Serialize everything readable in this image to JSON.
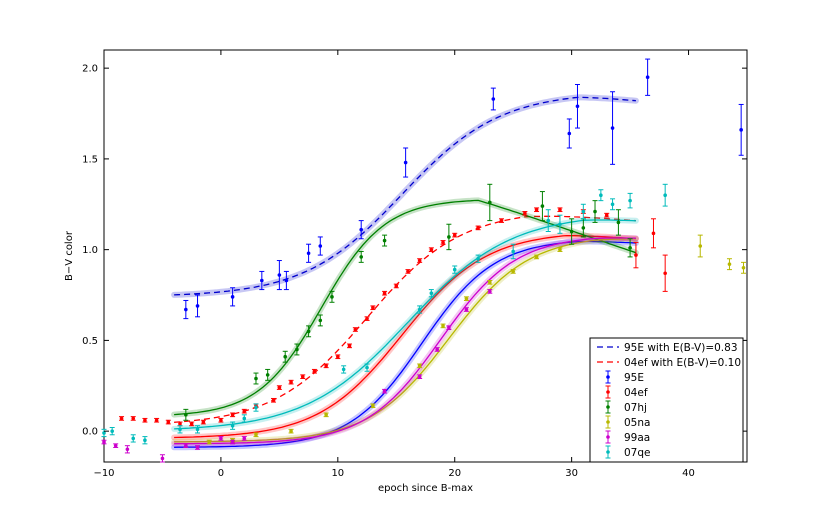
{
  "chart_data": {
    "type": "scatter",
    "title": "",
    "xlabel": "epoch since B-max",
    "ylabel": "B−V color",
    "xlim": [
      -10,
      45
    ],
    "ylim": [
      -0.17,
      2.1
    ],
    "xticks": [
      -10,
      0,
      10,
      20,
      30,
      40
    ],
    "yticks": [
      0.0,
      0.5,
      1.0,
      1.5,
      2.0
    ],
    "ytick_labels": [
      "0.0",
      "0.5",
      "1.0",
      "1.5",
      "2.0"
    ],
    "grid": false,
    "legend_position": "lower-right",
    "fits": [
      {
        "name": "95E with E(B-V)=0.83",
        "color": "#0000cc",
        "dashed": true,
        "band": true,
        "y_min": 0.74,
        "y_max": 1.87,
        "x_mid": 15.5,
        "width": 4.2,
        "x_start": -4,
        "x_end": 35.5,
        "dip_after": 30.5,
        "dip_rate": 0.008
      },
      {
        "name": "04ef with E(B-V)=0.10",
        "color": "#ff0000",
        "dashed": true,
        "band": false,
        "y_min": 0.03,
        "y_max": 1.22,
        "x_mid": 12.5,
        "width": 4.0,
        "x_start": -4,
        "x_end": 35.5,
        "dip_after": 26,
        "dip_rate": 0.006
      },
      {
        "name": "95E",
        "color": "#0000ff",
        "dashed": false,
        "band": true,
        "y_min": -0.09,
        "y_max": 1.06,
        "x_mid": 17.2,
        "width": 3.1,
        "x_start": -4,
        "x_end": 35.5,
        "dip_after": 30.5,
        "dip_rate": 0.004
      },
      {
        "name": "04ef",
        "color": "#ff0000",
        "dashed": false,
        "band": true,
        "y_min": -0.04,
        "y_max": 1.1,
        "x_mid": 15.5,
        "width": 3.6,
        "x_start": -4,
        "x_end": 35.5,
        "dip_after": 29.5,
        "dip_rate": 0.006
      },
      {
        "name": "07hj",
        "color": "#008000",
        "dashed": false,
        "band": true,
        "y_min": 0.08,
        "y_max": 1.28,
        "x_mid": 8.6,
        "width": 2.7,
        "x_start": -4,
        "x_end": 35.5,
        "dip_after": 22,
        "dip_rate": 0.022
      },
      {
        "name": "05na",
        "color": "#b8b800",
        "dashed": false,
        "band": true,
        "y_min": -0.06,
        "y_max": 1.08,
        "x_mid": 19.5,
        "width": 3.4,
        "x_start": -4,
        "x_end": 35.5,
        "dip_after": 32,
        "dip_rate": 0.003
      },
      {
        "name": "99aa",
        "color": "#cc00cc",
        "dashed": false,
        "band": true,
        "y_min": -0.07,
        "y_max": 1.08,
        "x_mid": 18.8,
        "width": 3.2,
        "x_start": -4,
        "x_end": 35.5,
        "dip_after": 32,
        "dip_rate": 0.003
      },
      {
        "name": "07qe",
        "color": "#00bbbb",
        "dashed": false,
        "band": true,
        "y_min": 0.0,
        "y_max": 1.2,
        "x_mid": 16.0,
        "width": 4.4,
        "x_start": -4,
        "x_end": 35.5,
        "dip_after": 31,
        "dip_rate": 0.006
      }
    ],
    "series": [
      {
        "name": "95E",
        "color": "#0000ff",
        "points": [
          [
            -3,
            0.67,
            0.05
          ],
          [
            -2,
            0.69,
            0.06
          ],
          [
            1,
            0.74,
            0.05
          ],
          [
            3.5,
            0.83,
            0.05
          ],
          [
            5,
            0.86,
            0.08
          ],
          [
            5.6,
            0.83,
            0.05
          ],
          [
            7.5,
            0.98,
            0.05
          ],
          [
            8.5,
            1.02,
            0.05
          ],
          [
            12,
            1.11,
            0.05
          ],
          [
            15.8,
            1.48,
            0.08
          ],
          [
            23.3,
            1.83,
            0.06
          ],
          [
            29.8,
            1.64,
            0.08
          ],
          [
            30.5,
            1.79,
            0.12
          ],
          [
            33.5,
            1.67,
            0.2
          ],
          [
            36.5,
            1.95,
            0.1
          ],
          [
            44.5,
            1.66,
            0.14
          ]
        ]
      },
      {
        "name": "04ef",
        "color": "#ff0000",
        "points": [
          [
            -8.5,
            0.07,
            0.01
          ],
          [
            -7.5,
            0.07,
            0.01
          ],
          [
            -6.5,
            0.06,
            0.01
          ],
          [
            -5.5,
            0.06,
            0.01
          ],
          [
            -4.5,
            0.05,
            0.01
          ],
          [
            -3.5,
            0.04,
            0.01
          ],
          [
            -2.5,
            0.04,
            0.01
          ],
          [
            -1.5,
            0.05,
            0.01
          ],
          [
            0,
            0.06,
            0.01
          ],
          [
            1,
            0.09,
            0.01
          ],
          [
            2,
            0.11,
            0.01
          ],
          [
            3,
            0.14,
            0.01
          ],
          [
            4.5,
            0.17,
            0.01
          ],
          [
            5,
            0.24,
            0.01
          ],
          [
            6,
            0.27,
            0.01
          ],
          [
            7,
            0.3,
            0.01
          ],
          [
            8,
            0.33,
            0.01
          ],
          [
            9,
            0.36,
            0.01
          ],
          [
            10,
            0.41,
            0.01
          ],
          [
            11,
            0.47,
            0.01
          ],
          [
            11.5,
            0.56,
            0.01
          ],
          [
            12.5,
            0.62,
            0.01
          ],
          [
            13,
            0.68,
            0.01
          ],
          [
            14,
            0.76,
            0.01
          ],
          [
            15,
            0.8,
            0.01
          ],
          [
            16,
            0.88,
            0.01
          ],
          [
            17,
            0.94,
            0.01
          ],
          [
            18,
            1.0,
            0.01
          ],
          [
            19,
            1.04,
            0.01
          ],
          [
            20,
            1.08,
            0.01
          ],
          [
            22,
            1.12,
            0.01
          ],
          [
            24,
            1.16,
            0.01
          ],
          [
            26,
            1.2,
            0.01
          ],
          [
            27,
            1.22,
            0.01
          ],
          [
            29,
            1.22,
            0.01
          ],
          [
            31,
            1.21,
            0.01
          ],
          [
            33,
            1.19,
            0.01
          ],
          [
            35.5,
            0.97,
            0.07
          ],
          [
            37,
            1.09,
            0.08
          ],
          [
            38,
            0.87,
            0.1
          ]
        ]
      },
      {
        "name": "07hj",
        "color": "#008000",
        "points": [
          [
            -3,
            0.09,
            0.03
          ],
          [
            3,
            0.29,
            0.03
          ],
          [
            4,
            0.31,
            0.03
          ],
          [
            5.5,
            0.41,
            0.03
          ],
          [
            6.5,
            0.45,
            0.03
          ],
          [
            7.5,
            0.55,
            0.03
          ],
          [
            8.5,
            0.61,
            0.03
          ],
          [
            9.5,
            0.74,
            0.03
          ],
          [
            12,
            0.96,
            0.03
          ],
          [
            14,
            1.05,
            0.03
          ],
          [
            19.5,
            1.07,
            0.07
          ],
          [
            23,
            1.26,
            0.1
          ],
          [
            27.5,
            1.24,
            0.08
          ],
          [
            30,
            1.1,
            0.07
          ],
          [
            31,
            1.12,
            0.05
          ],
          [
            32,
            1.21,
            0.06
          ],
          [
            34,
            1.15,
            0.07
          ],
          [
            35,
            1.01,
            0.05
          ]
        ]
      },
      {
        "name": "05na",
        "color": "#b8b800",
        "points": [
          [
            -1,
            -0.06,
            0.01
          ],
          [
            1,
            -0.05,
            0.01
          ],
          [
            3,
            -0.02,
            0.01
          ],
          [
            6,
            0.0,
            0.01
          ],
          [
            9,
            0.09,
            0.01
          ],
          [
            13,
            0.14,
            0.01
          ],
          [
            17,
            0.36,
            0.01
          ],
          [
            19,
            0.58,
            0.01
          ],
          [
            21,
            0.73,
            0.01
          ],
          [
            23,
            0.82,
            0.01
          ],
          [
            25,
            0.88,
            0.01
          ],
          [
            27,
            0.96,
            0.01
          ],
          [
            29,
            1.0,
            0.01
          ],
          [
            41,
            1.02,
            0.06
          ],
          [
            43.5,
            0.92,
            0.03
          ],
          [
            44.7,
            0.9,
            0.03
          ]
        ]
      },
      {
        "name": "99aa",
        "color": "#cc00cc",
        "points": [
          [
            -10,
            -0.06,
            0.01
          ],
          [
            -9,
            -0.08,
            0.01
          ],
          [
            -8,
            -0.1,
            0.02
          ],
          [
            -5,
            -0.15,
            0.02
          ],
          [
            -3,
            -0.08,
            0.01
          ],
          [
            -2,
            -0.09,
            0.01
          ],
          [
            0,
            -0.04,
            0.01
          ],
          [
            1,
            -0.06,
            0.01
          ],
          [
            2,
            -0.04,
            0.01
          ],
          [
            14,
            0.22,
            0.01
          ],
          [
            17,
            0.3,
            0.01
          ],
          [
            18.5,
            0.45,
            0.01
          ],
          [
            19.5,
            0.57,
            0.01
          ],
          [
            21,
            0.67,
            0.01
          ],
          [
            23,
            0.77,
            0.01
          ]
        ]
      },
      {
        "name": "07qe",
        "color": "#00bbbb",
        "points": [
          [
            -10,
            -0.01,
            0.02
          ],
          [
            -9.3,
            0.0,
            0.02
          ],
          [
            -7.5,
            -0.04,
            0.02
          ],
          [
            -6.5,
            -0.05,
            0.02
          ],
          [
            -3.5,
            0.01,
            0.02
          ],
          [
            -2,
            0.01,
            0.02
          ],
          [
            1,
            0.03,
            0.02
          ],
          [
            2,
            0.07,
            0.02
          ],
          [
            3,
            0.13,
            0.02
          ],
          [
            10.5,
            0.34,
            0.02
          ],
          [
            12.5,
            0.35,
            0.02
          ],
          [
            17,
            0.67,
            0.02
          ],
          [
            18,
            0.76,
            0.02
          ],
          [
            20,
            0.89,
            0.02
          ],
          [
            22,
            0.95,
            0.02
          ],
          [
            25,
            0.99,
            0.04
          ],
          [
            28,
            1.16,
            0.06
          ],
          [
            29,
            1.14,
            0.05
          ],
          [
            31,
            1.21,
            0.04
          ],
          [
            32.5,
            1.3,
            0.03
          ],
          [
            33.5,
            1.25,
            0.03
          ],
          [
            35,
            1.27,
            0.04
          ],
          [
            38,
            1.3,
            0.06
          ]
        ]
      }
    ]
  }
}
